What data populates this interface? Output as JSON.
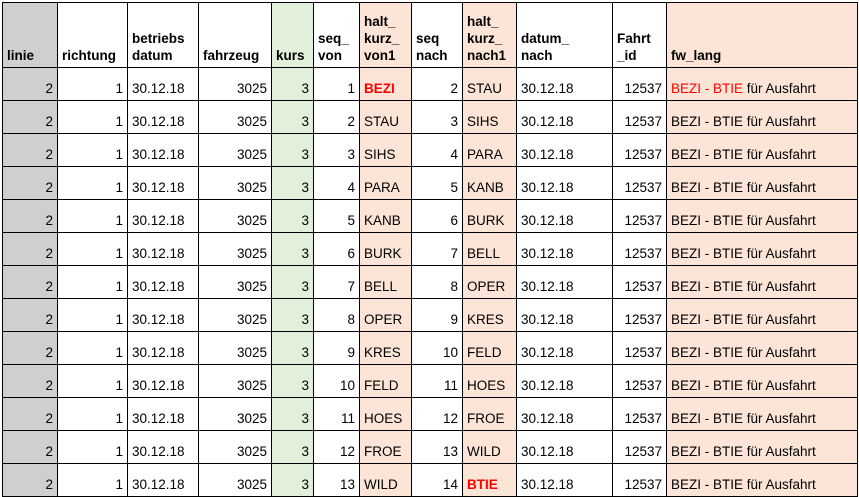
{
  "colors": {
    "linie_bg": "#d0cece",
    "kurs_bg": "#e2efda",
    "halt_bg": "#fce4d6",
    "highlight_red": "#ff0000"
  },
  "headers": {
    "linie": "linie",
    "richtung": "richtung",
    "betriebsdatum": "betriebs\ndatum",
    "fahrzeug": "fahrzeug",
    "kurs": "kurs",
    "seq_von": "seq_\nvon",
    "halt_kurz_von1": "halt_\nkurz_\nvon1",
    "seq_nach": "seq\nnach",
    "halt_kurz_nach1": "halt_\nkurz_\nnach1",
    "datum_nach": "datum_\nnach",
    "fahrt_id": "Fahrt\n_id",
    "fw_lang": "fw_lang"
  },
  "rows": [
    {
      "linie": "2",
      "richtung": "1",
      "betriebsdatum": "30.12.18",
      "fahrzeug": "3025",
      "kurs": "3",
      "seq_von": "1",
      "halt_von": "BEZI",
      "seq_nach": "2",
      "halt_nach": "STAU",
      "datum_nach": "30.12.18",
      "fahrt_id": "12537",
      "fw_a": "BEZI - BTIE",
      "fw_b": " für Ausfahrt"
    },
    {
      "linie": "2",
      "richtung": "1",
      "betriebsdatum": "30.12.18",
      "fahrzeug": "3025",
      "kurs": "3",
      "seq_von": "2",
      "halt_von": "STAU",
      "seq_nach": "3",
      "halt_nach": "SIHS",
      "datum_nach": "30.12.18",
      "fahrt_id": "12537",
      "fw_a": "BEZI - BTIE",
      "fw_b": " für Ausfahrt"
    },
    {
      "linie": "2",
      "richtung": "1",
      "betriebsdatum": "30.12.18",
      "fahrzeug": "3025",
      "kurs": "3",
      "seq_von": "3",
      "halt_von": "SIHS",
      "seq_nach": "4",
      "halt_nach": "PARA",
      "datum_nach": "30.12.18",
      "fahrt_id": "12537",
      "fw_a": "BEZI - BTIE",
      "fw_b": " für Ausfahrt"
    },
    {
      "linie": "2",
      "richtung": "1",
      "betriebsdatum": "30.12.18",
      "fahrzeug": "3025",
      "kurs": "3",
      "seq_von": "4",
      "halt_von": "PARA",
      "seq_nach": "5",
      "halt_nach": "KANB",
      "datum_nach": "30.12.18",
      "fahrt_id": "12537",
      "fw_a": "BEZI - BTIE",
      "fw_b": " für Ausfahrt"
    },
    {
      "linie": "2",
      "richtung": "1",
      "betriebsdatum": "30.12.18",
      "fahrzeug": "3025",
      "kurs": "3",
      "seq_von": "5",
      "halt_von": "KANB",
      "seq_nach": "6",
      "halt_nach": "BURK",
      "datum_nach": "30.12.18",
      "fahrt_id": "12537",
      "fw_a": "BEZI - BTIE",
      "fw_b": " für Ausfahrt"
    },
    {
      "linie": "2",
      "richtung": "1",
      "betriebsdatum": "30.12.18",
      "fahrzeug": "3025",
      "kurs": "3",
      "seq_von": "6",
      "halt_von": "BURK",
      "seq_nach": "7",
      "halt_nach": "BELL",
      "datum_nach": "30.12.18",
      "fahrt_id": "12537",
      "fw_a": "BEZI - BTIE",
      "fw_b": " für Ausfahrt"
    },
    {
      "linie": "2",
      "richtung": "1",
      "betriebsdatum": "30.12.18",
      "fahrzeug": "3025",
      "kurs": "3",
      "seq_von": "7",
      "halt_von": "BELL",
      "seq_nach": "8",
      "halt_nach": "OPER",
      "datum_nach": "30.12.18",
      "fahrt_id": "12537",
      "fw_a": "BEZI - BTIE",
      "fw_b": " für Ausfahrt"
    },
    {
      "linie": "2",
      "richtung": "1",
      "betriebsdatum": "30.12.18",
      "fahrzeug": "3025",
      "kurs": "3",
      "seq_von": "8",
      "halt_von": "OPER",
      "seq_nach": "9",
      "halt_nach": "KRES",
      "datum_nach": "30.12.18",
      "fahrt_id": "12537",
      "fw_a": "BEZI - BTIE",
      "fw_b": " für Ausfahrt"
    },
    {
      "linie": "2",
      "richtung": "1",
      "betriebsdatum": "30.12.18",
      "fahrzeug": "3025",
      "kurs": "3",
      "seq_von": "9",
      "halt_von": "KRES",
      "seq_nach": "10",
      "halt_nach": "FELD",
      "datum_nach": "30.12.18",
      "fahrt_id": "12537",
      "fw_a": "BEZI - BTIE",
      "fw_b": " für Ausfahrt"
    },
    {
      "linie": "2",
      "richtung": "1",
      "betriebsdatum": "30.12.18",
      "fahrzeug": "3025",
      "kurs": "3",
      "seq_von": "10",
      "halt_von": "FELD",
      "seq_nach": "11",
      "halt_nach": "HOES",
      "datum_nach": "30.12.18",
      "fahrt_id": "12537",
      "fw_a": "BEZI - BTIE",
      "fw_b": " für Ausfahrt"
    },
    {
      "linie": "2",
      "richtung": "1",
      "betriebsdatum": "30.12.18",
      "fahrzeug": "3025",
      "kurs": "3",
      "seq_von": "11",
      "halt_von": "HOES",
      "seq_nach": "12",
      "halt_nach": "FROE",
      "datum_nach": "30.12.18",
      "fahrt_id": "12537",
      "fw_a": "BEZI - BTIE",
      "fw_b": " für Ausfahrt"
    },
    {
      "linie": "2",
      "richtung": "1",
      "betriebsdatum": "30.12.18",
      "fahrzeug": "3025",
      "kurs": "3",
      "seq_von": "12",
      "halt_von": "FROE",
      "seq_nach": "13",
      "halt_nach": "WILD",
      "datum_nach": "30.12.18",
      "fahrt_id": "12537",
      "fw_a": "BEZI - BTIE",
      "fw_b": " für Ausfahrt"
    },
    {
      "linie": "2",
      "richtung": "1",
      "betriebsdatum": "30.12.18",
      "fahrzeug": "3025",
      "kurs": "3",
      "seq_von": "13",
      "halt_von": "WILD",
      "seq_nach": "14",
      "halt_nach": "BTIE",
      "datum_nach": "30.12.18",
      "fahrt_id": "12537",
      "fw_a": "BEZI - BTIE",
      "fw_b": " für Ausfahrt"
    }
  ]
}
